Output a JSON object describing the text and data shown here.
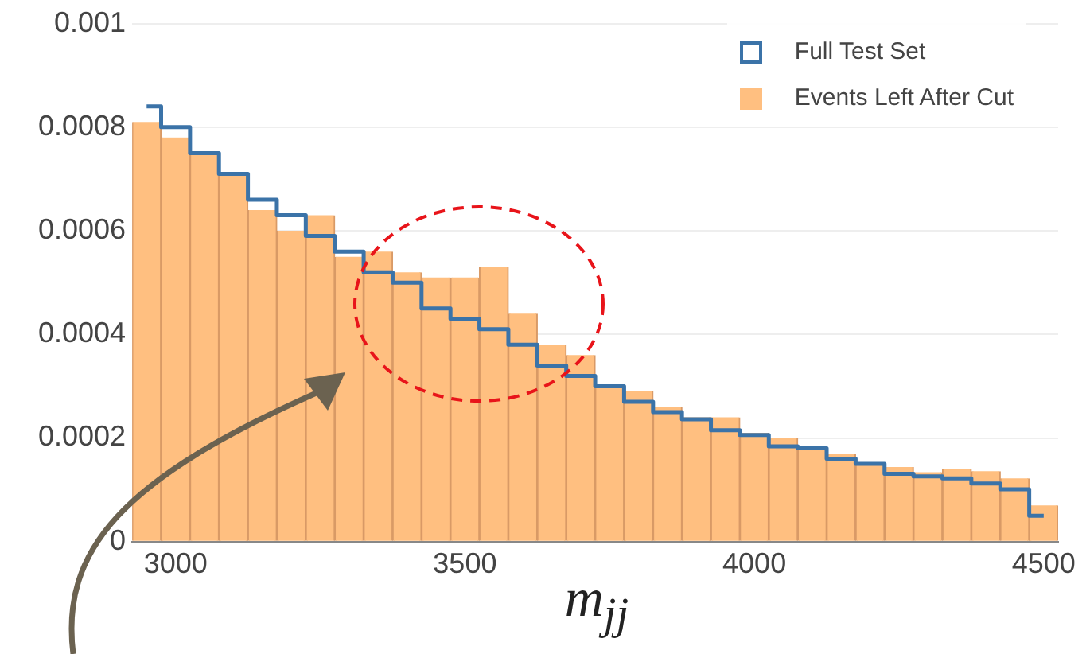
{
  "chart_data": {
    "type": "histogram",
    "xlabel": "m$_{jj}$",
    "bins": [
      2925,
      2975,
      3025,
      3075,
      3125,
      3175,
      3225,
      3275,
      3325,
      3375,
      3425,
      3475,
      3525,
      3575,
      3625,
      3675,
      3725,
      3775,
      3825,
      3875,
      3925,
      3975,
      4025,
      4075,
      4125,
      4175,
      4225,
      4275,
      4325,
      4375,
      4425,
      4475,
      4525
    ],
    "series": [
      {
        "name": "Full Test Set",
        "type": "step",
        "color": "#3b73a8",
        "x": [
          2950,
          3000,
          3050,
          3100,
          3150,
          3200,
          3250,
          3300,
          3350,
          3400,
          3450,
          3500,
          3550,
          3600,
          3650,
          3700,
          3750,
          3800,
          3850,
          3900,
          3950,
          4000,
          4050,
          4100,
          4150,
          4200,
          4250,
          4300,
          4350,
          4400,
          4450,
          4500
        ],
        "values": [
          0.00084,
          0.0008,
          0.00075,
          0.00071,
          0.00066,
          0.00063,
          0.00059,
          0.00056,
          0.00052,
          0.0005,
          0.00045,
          0.00043,
          0.00041,
          0.00038,
          0.00034,
          0.00032,
          0.0003,
          0.00027,
          0.00025,
          0.000236,
          0.000215,
          0.000206,
          0.000184,
          0.00018,
          0.00016,
          0.00015,
          0.000131,
          0.000126,
          0.000122,
          0.000112,
          0.000101,
          5e-05
        ]
      },
      {
        "name": "Events Left After Cut",
        "color": "#ffbf80",
        "values": [
          0.00081,
          0.00078,
          0.00075,
          0.00071,
          0.00064,
          0.0006,
          0.00063,
          0.00055,
          0.00056,
          0.00052,
          0.00051,
          0.00051,
          0.00053,
          0.00044,
          0.00038,
          0.00036,
          0.0003,
          0.00029,
          0.00026,
          0.00024,
          0.00024,
          0.00021,
          0.0002,
          0.000184,
          0.00017,
          0.000153,
          0.000144,
          0.000134,
          0.00014,
          0.000136,
          0.000122,
          7e-05
        ]
      }
    ],
    "xlim": [
      2925,
      4525
    ],
    "xticks": [
      3000,
      3500,
      4000,
      4500
    ],
    "ylim": [
      0,
      0.001
    ],
    "yticks": [
      0,
      0.0002,
      0.0004,
      0.0006,
      0.0008,
      0.001
    ],
    "grid": "y",
    "legend": "top right"
  }
}
